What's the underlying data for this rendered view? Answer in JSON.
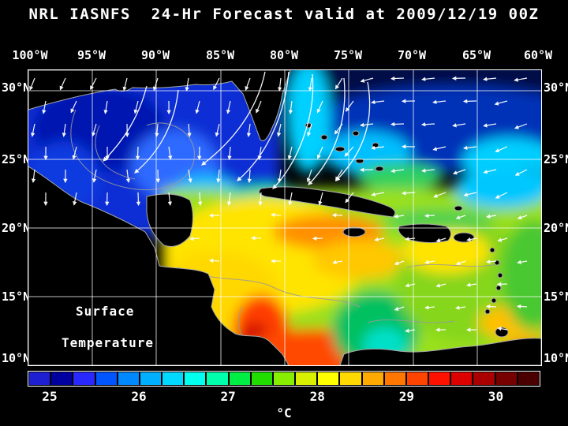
{
  "title": "NRL IASNFS  24-Hr Forecast valid at 2009/12/19 00Z",
  "map": {
    "lon_labels": [
      "100°W",
      "95°W",
      "90°W",
      "85°W",
      "80°W",
      "75°W",
      "70°W",
      "65°W",
      "60°W"
    ],
    "lat_labels_left": [
      "30°N",
      "25°N",
      "20°N",
      "15°N",
      "10°N"
    ],
    "lat_labels_right": [
      "30°N",
      "25°N",
      "20°N",
      "15°N",
      "10°N"
    ],
    "overlay_label_line1": "Surface",
    "overlay_label_line2": "Temperature"
  },
  "colorbar": {
    "unit": "°C",
    "tick_labels": [
      "25",
      "26",
      "27",
      "28",
      "29",
      "30"
    ],
    "tick_positions_pct": [
      4.3,
      21.7,
      39.1,
      56.5,
      73.9,
      91.3
    ],
    "colors": [
      "#1e1ed2",
      "#0000a0",
      "#2828ff",
      "#0055ff",
      "#0088ff",
      "#00b0ff",
      "#00d8ff",
      "#00ffee",
      "#00ffaa",
      "#00ee44",
      "#22dd00",
      "#88ee00",
      "#d8f000",
      "#ffff00",
      "#ffd800",
      "#ffaa00",
      "#ff7700",
      "#ff4400",
      "#ff1100",
      "#dd0000",
      "#aa0000",
      "#770000",
      "#4a0000"
    ]
  }
}
